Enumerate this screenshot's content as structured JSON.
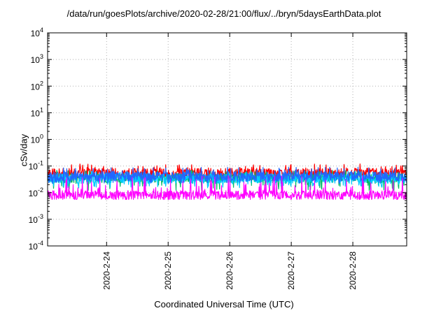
{
  "chart_data": {
    "type": "line",
    "title": "/data/run/goesPlots/archive/2020-02-28/21:00/flux/../bryn/5daysEarthData.plot",
    "xlabel": "Coordinated Universal Time (UTC)",
    "ylabel": "cSv/day",
    "yscale": "log",
    "ylim": [
      0.0001,
      10000
    ],
    "xlim": [
      "2020-02-23 01:00",
      "2020-02-28 21:00"
    ],
    "x_tick_labels": [
      "2020-2-24",
      "2020-2-25",
      "2020-2-26",
      "2020-2-27",
      "2020-2-28"
    ],
    "x_tick_dates": [
      "2020-02-24",
      "2020-02-25",
      "2020-02-26",
      "2020-02-27",
      "2020-02-28"
    ],
    "y_ticks": [
      {
        "value": 0.0001,
        "base": "10",
        "exp": "-4"
      },
      {
        "value": 0.001,
        "base": "10",
        "exp": "-3"
      },
      {
        "value": 0.01,
        "base": "10",
        "exp": "-2"
      },
      {
        "value": 0.1,
        "base": "10",
        "exp": "-1"
      },
      {
        "value": 1,
        "base": "10",
        "exp": "0"
      },
      {
        "value": 10,
        "base": "10",
        "exp": "1"
      },
      {
        "value": 100,
        "base": "10",
        "exp": "2"
      },
      {
        "value": 1000,
        "base": "10",
        "exp": "3"
      },
      {
        "value": 10000,
        "base": "10",
        "exp": "4"
      }
    ],
    "grid": true,
    "series": [
      {
        "color": "#ff0000",
        "typical": 0.055,
        "spike_max": 0.12,
        "dip_min": 0.03
      },
      {
        "color": "#00bb66",
        "typical": 0.035,
        "spike_max": 0.07,
        "dip_min": 0.012
      },
      {
        "color": "#00ccff",
        "typical": 0.033,
        "spike_max": 0.065,
        "dip_min": 0.015
      },
      {
        "color": "#2266ff",
        "typical": 0.04,
        "spike_max": 0.09,
        "dip_min": 0.022
      },
      {
        "color": "#ff00ff",
        "typical": 0.008,
        "spike_max": 0.045,
        "dip_min": 0.0055
      }
    ]
  }
}
